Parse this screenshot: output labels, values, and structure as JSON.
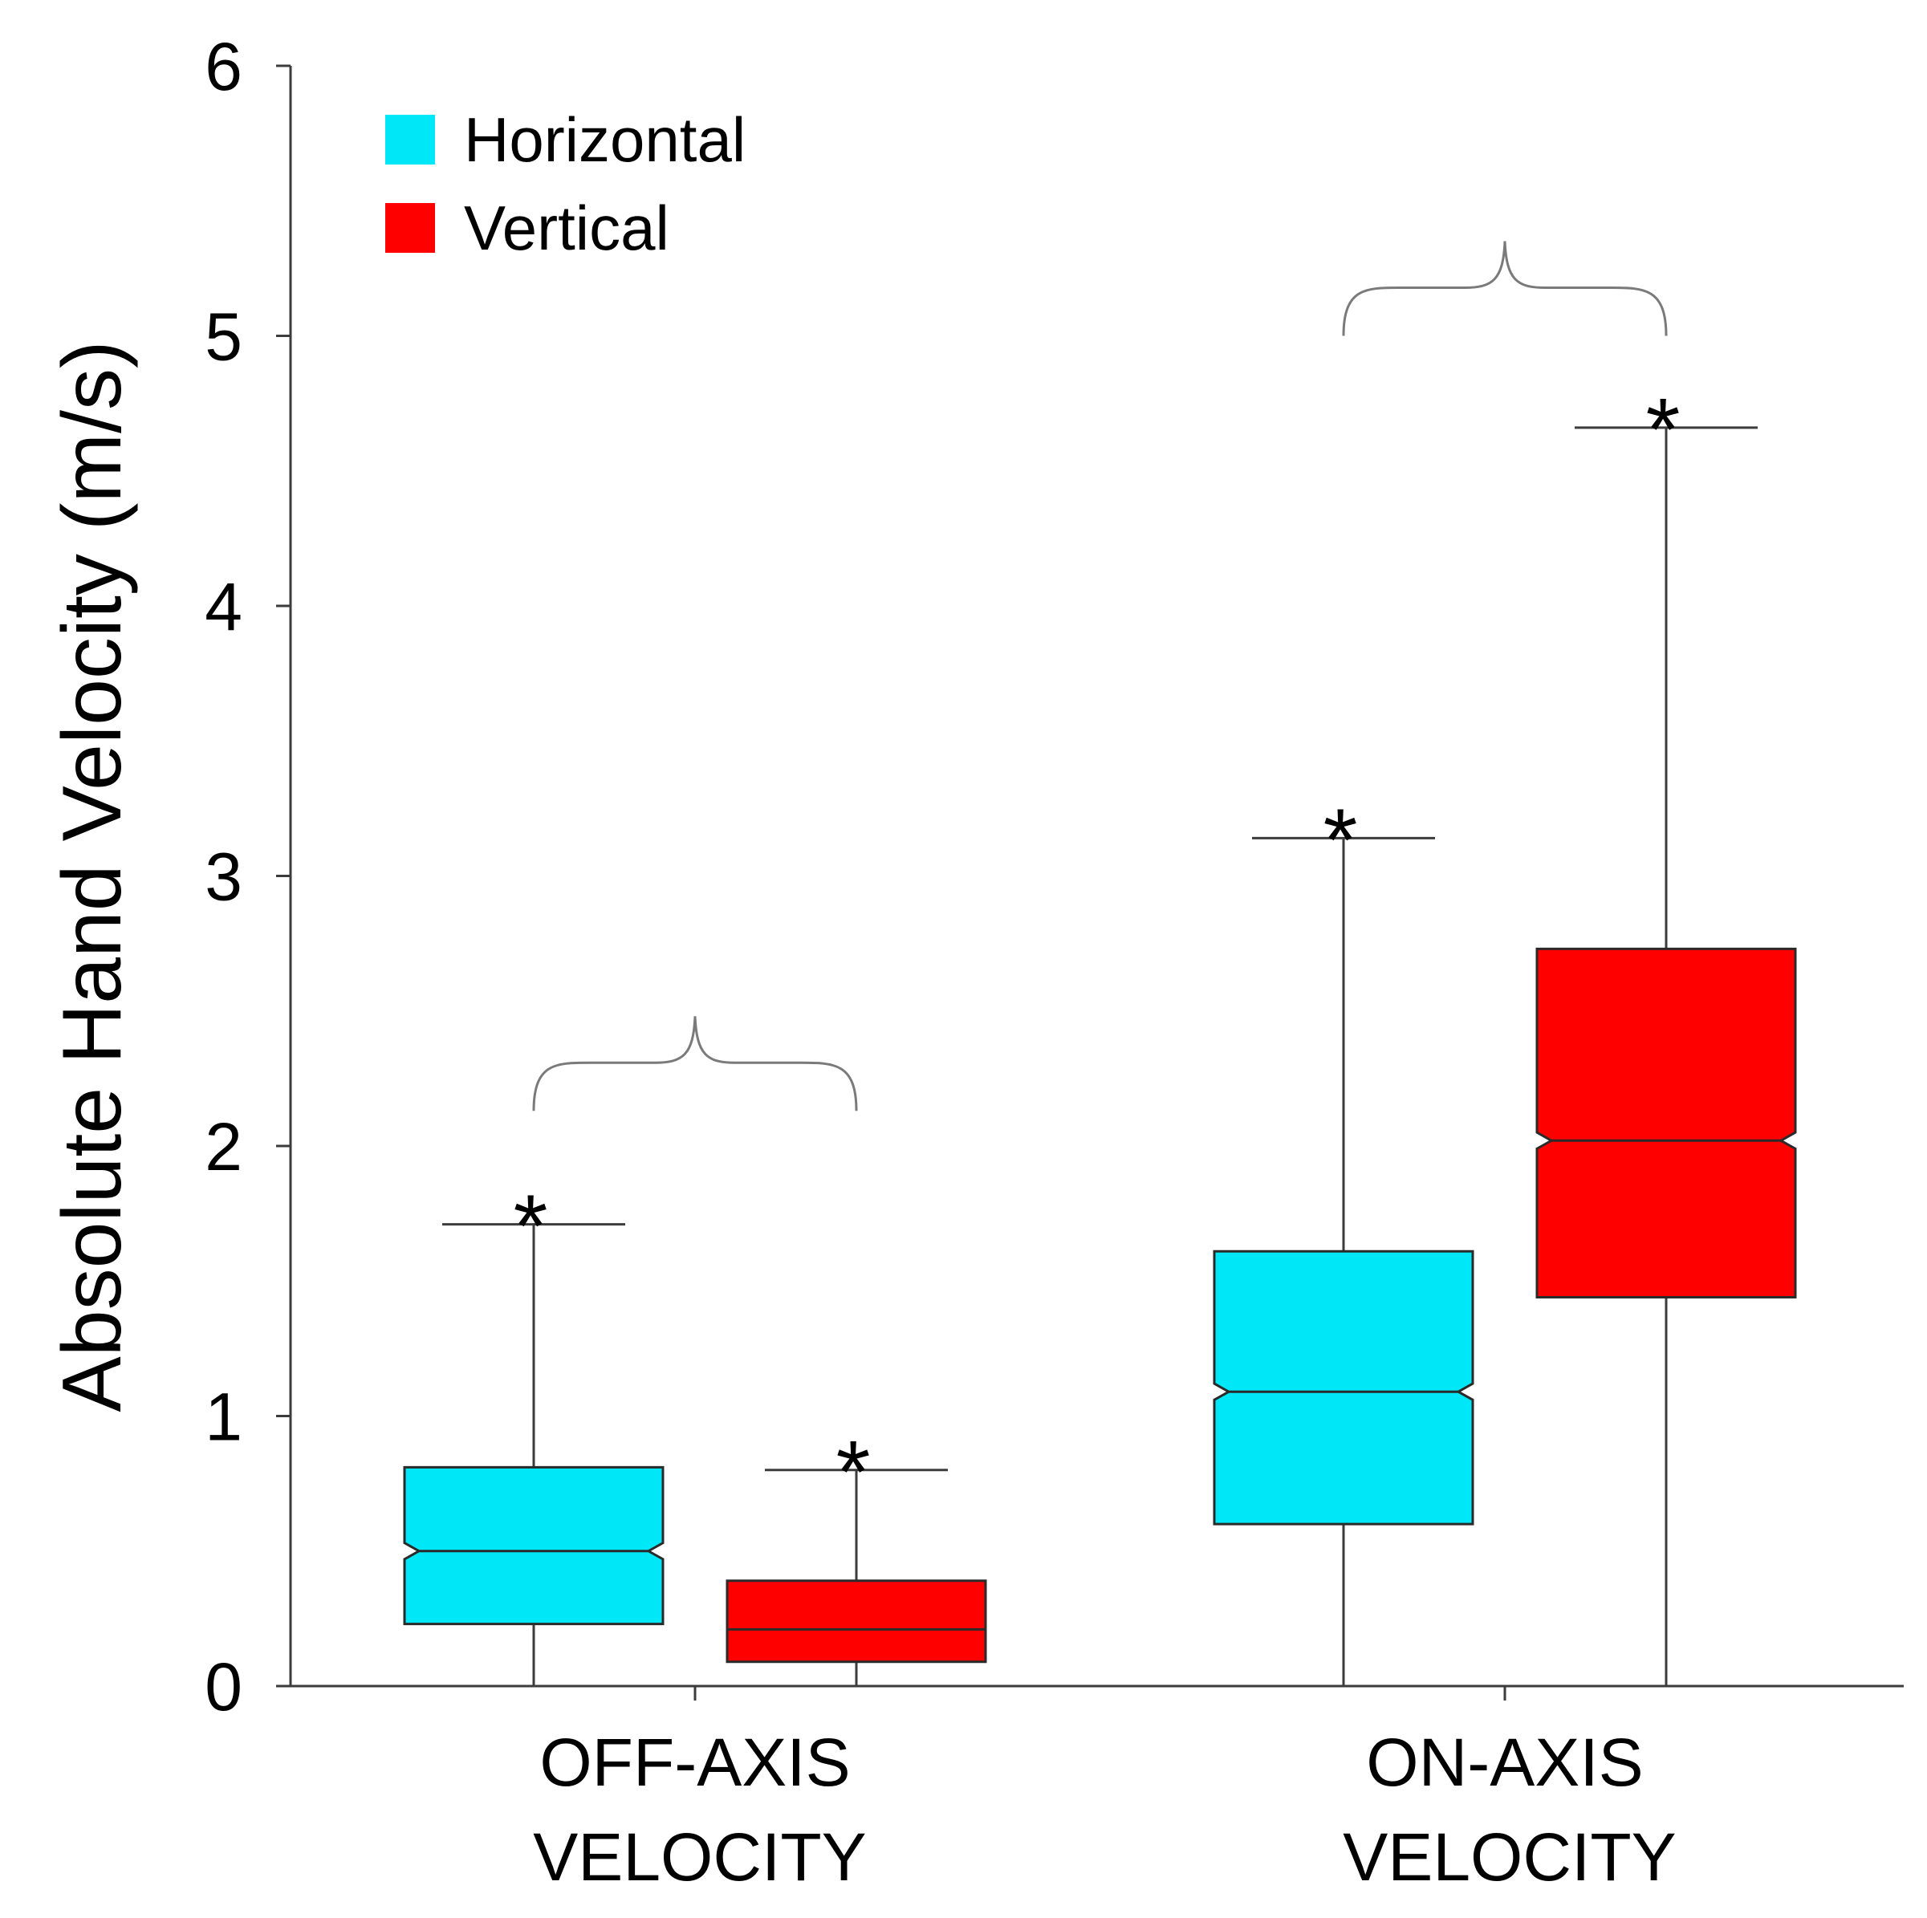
{
  "chart_data": {
    "type": "boxplot",
    "notched": true,
    "ylabel": "Absolute Hand Velocity (m/s)",
    "ylim": [
      0,
      6
    ],
    "yticks": [
      "0",
      "1",
      "2",
      "3",
      "4",
      "5",
      "6"
    ],
    "groups": [
      {
        "label_lines": [
          "OFF-AXIS",
          "VELOCITY"
        ]
      },
      {
        "label_lines": [
          "ON-AXIS",
          "VELOCITY"
        ]
      }
    ],
    "legend": [
      {
        "name": "Horizontal",
        "color": "#00E8F8"
      },
      {
        "name": "Vertical",
        "color": "#FF0000"
      }
    ],
    "series": [
      {
        "name": "Horizontal",
        "color": "#00E8F8",
        "boxes": [
          {
            "group": 0,
            "whisker_low": 0.0,
            "q1": 0.23,
            "median": 0.5,
            "q3": 0.81,
            "whisker_high": 1.71,
            "notch_low": 0.47,
            "notch_high": 0.53
          },
          {
            "group": 1,
            "whisker_low": 0.0,
            "q1": 0.6,
            "median": 1.09,
            "q3": 1.61,
            "whisker_high": 3.14,
            "notch_low": 1.06,
            "notch_high": 1.12
          }
        ]
      },
      {
        "name": "Vertical",
        "color": "#FF0000",
        "boxes": [
          {
            "group": 0,
            "whisker_low": 0.0,
            "q1": 0.09,
            "median": 0.21,
            "q3": 0.39,
            "whisker_high": 0.8,
            "notch_low": 0.21,
            "notch_high": 0.21
          },
          {
            "group": 1,
            "whisker_low": 0.0,
            "q1": 1.44,
            "median": 2.02,
            "q3": 2.73,
            "whisker_high": 4.66,
            "notch_low": 1.99,
            "notch_high": 2.05
          }
        ]
      }
    ],
    "annotations": [
      {
        "text": "*",
        "series": 0,
        "group": 0
      },
      {
        "text": "*",
        "series": 1,
        "group": 0
      },
      {
        "text": "*",
        "series": 0,
        "group": 1
      },
      {
        "text": "*",
        "series": 1,
        "group": 1
      }
    ],
    "brackets": [
      {
        "group": 0,
        "value": 2.13
      },
      {
        "group": 1,
        "value": 5.0
      }
    ]
  }
}
